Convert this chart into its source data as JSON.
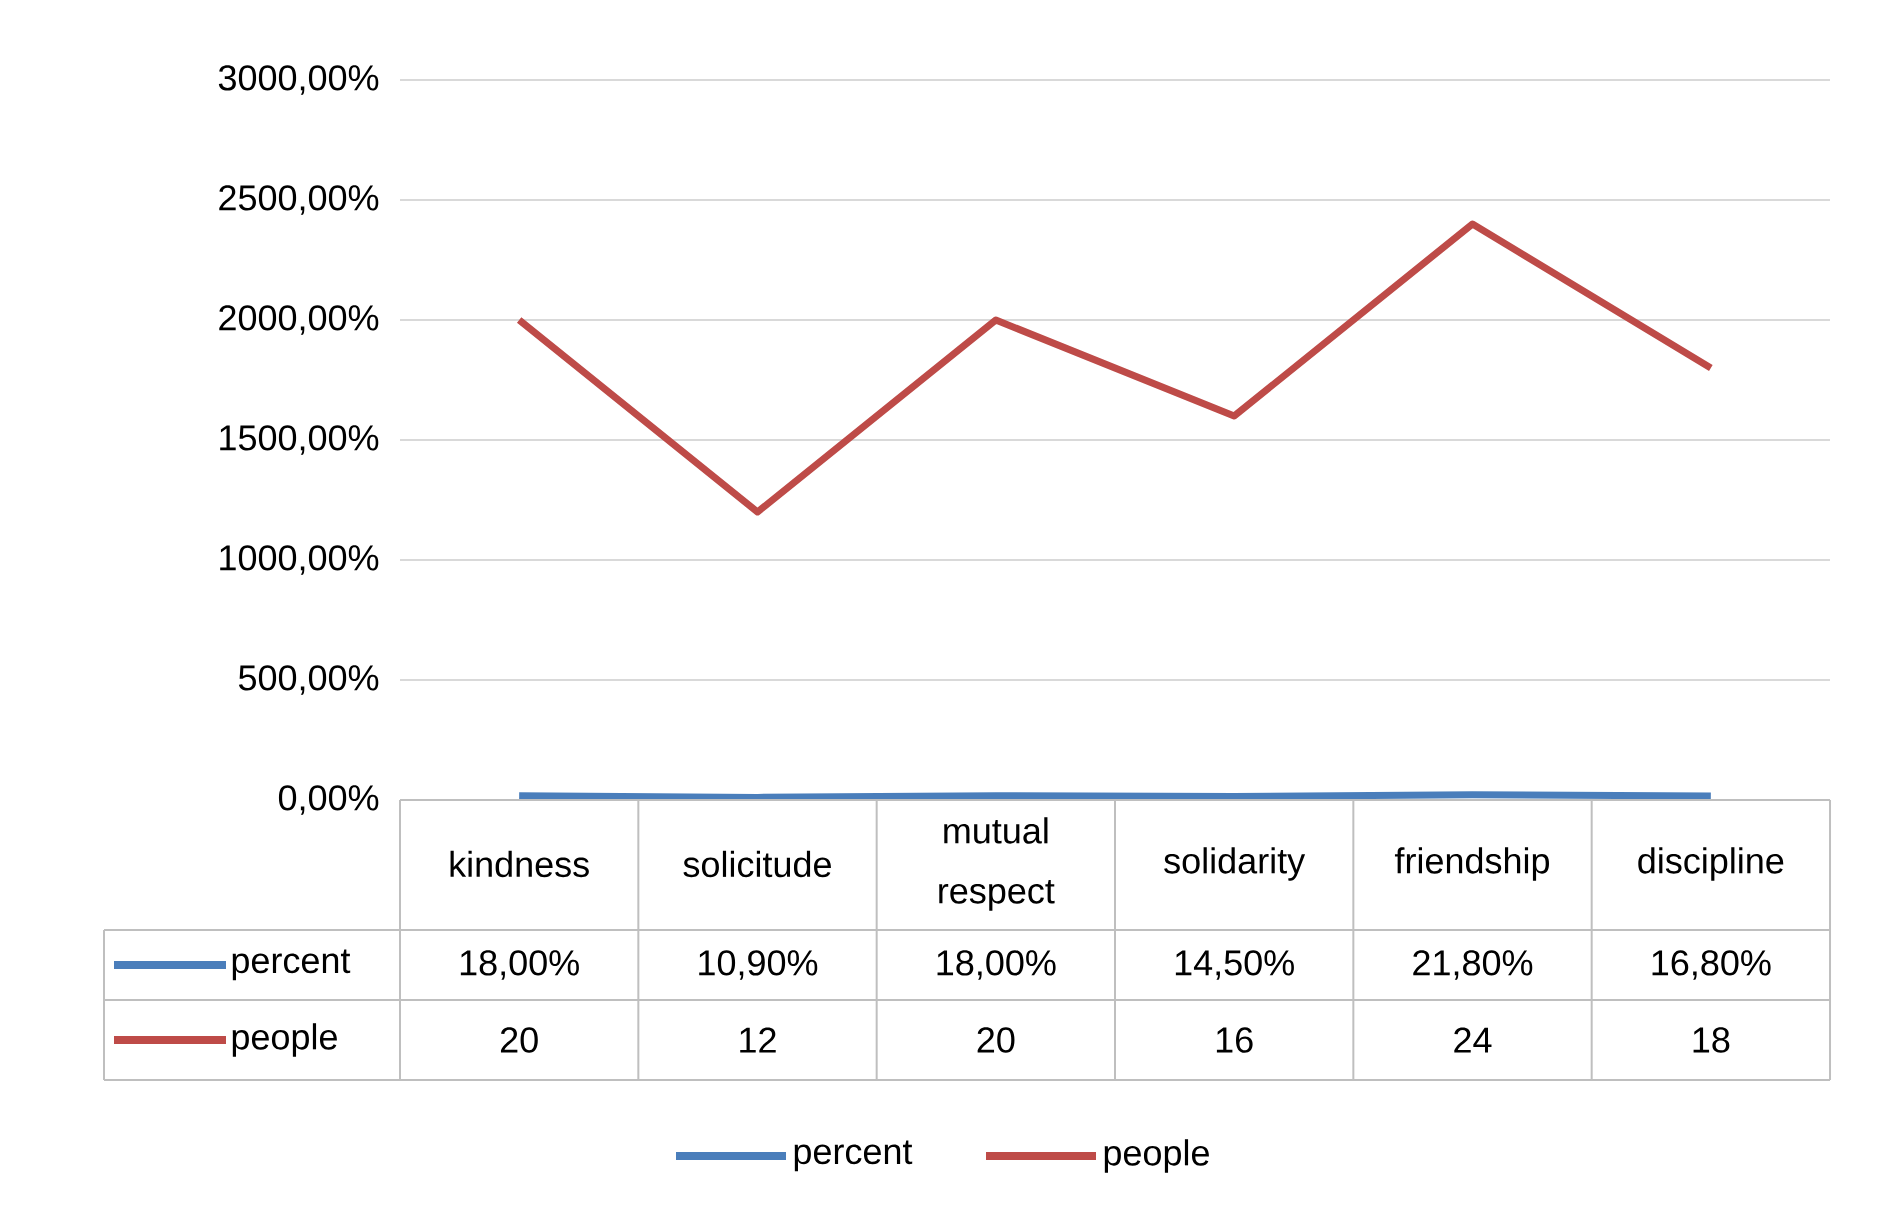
{
  "chart_data": {
    "type": "line",
    "categories": [
      "kindness",
      "solicitude",
      "mutual respect",
      "solidarity",
      "friendship",
      "discipline"
    ],
    "series": [
      {
        "name": "percent",
        "color": "#4a7ebb",
        "values": [
          0.18,
          0.109,
          0.18,
          0.145,
          0.218,
          0.168
        ],
        "value_labels": [
          "18,00%",
          "10,90%",
          "18,00%",
          "14,50%",
          "21,80%",
          "16,80%"
        ]
      },
      {
        "name": "people",
        "color": "#be4b48",
        "values": [
          20,
          12,
          20,
          16,
          24,
          18
        ],
        "value_labels": [
          "20",
          "12",
          "20",
          "16",
          "24",
          "18"
        ]
      }
    ],
    "ylim": [
      0,
      30
    ],
    "yticks": [
      {
        "value": 0,
        "label": "0,00%"
      },
      {
        "value": 5,
        "label": "500,00%"
      },
      {
        "value": 10,
        "label": "1000,00%"
      },
      {
        "value": 15,
        "label": "1500,00%"
      },
      {
        "value": 20,
        "label": "2000,00%"
      },
      {
        "value": 25,
        "label": "2500,00%"
      },
      {
        "value": 30,
        "label": "3000,00%"
      }
    ],
    "grid": "y",
    "legend": "bottom"
  }
}
